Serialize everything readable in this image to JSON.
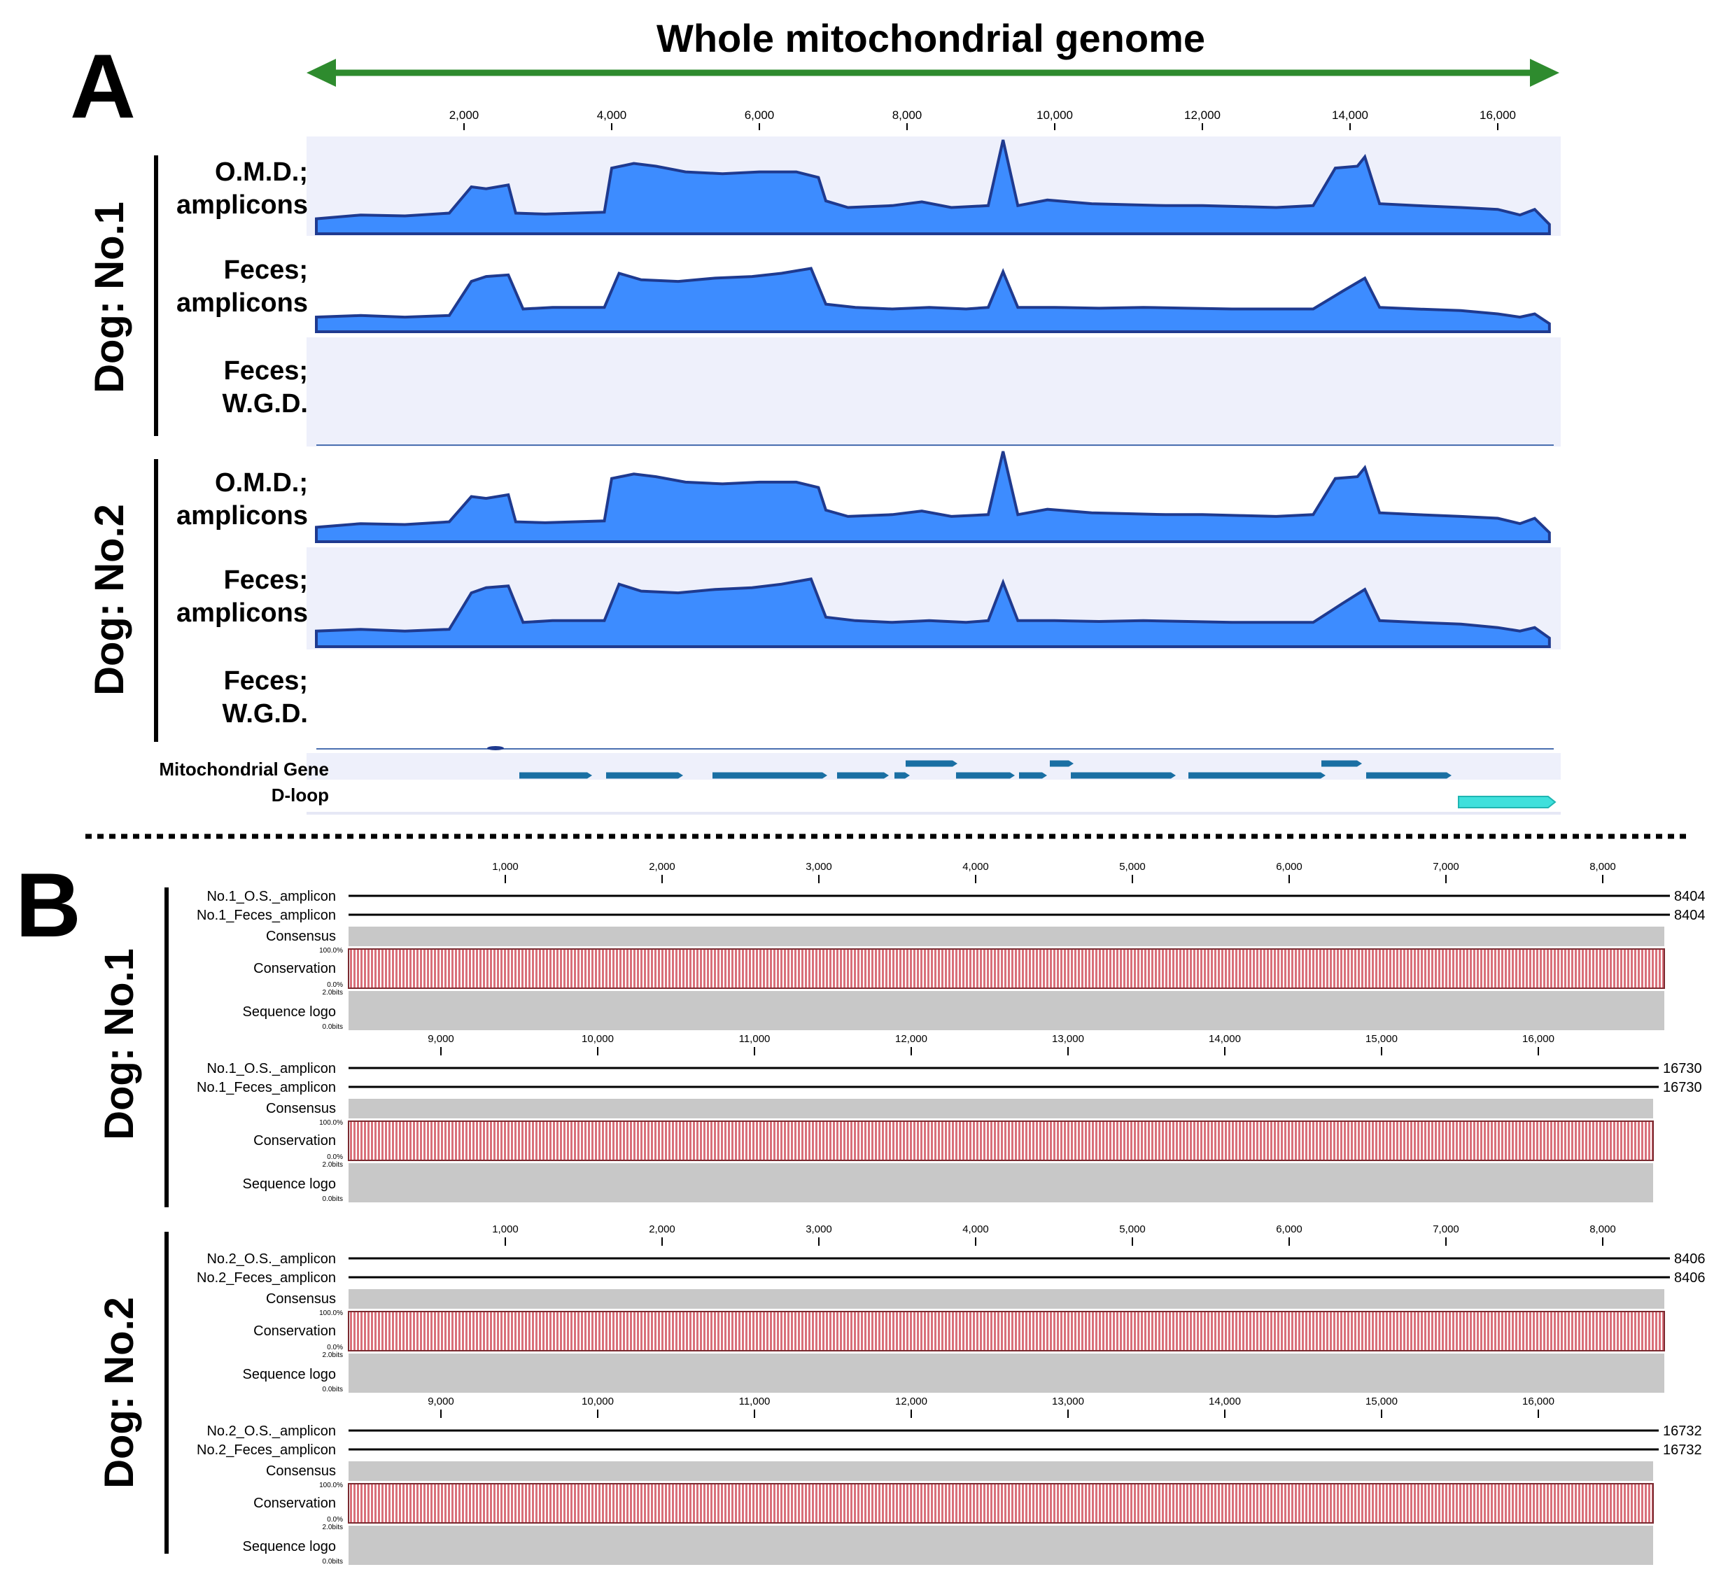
{
  "panel_a": {
    "letter": "A",
    "title": "Whole mitochondrial genome",
    "ruler_ticks": [
      "2,000",
      "4,000",
      "6,000",
      "8,000",
      "10,000",
      "12,000",
      "14,000",
      "16,000"
    ],
    "groups": [
      {
        "label": "Dog: No.1"
      },
      {
        "label": "Dog: No.2"
      }
    ],
    "tracks": [
      {
        "line1": "O.M.D.;",
        "line2": "amplicons"
      },
      {
        "line1": "Feces;",
        "line2": "amplicons"
      },
      {
        "line1": "Feces;",
        "line2": "W.G.D."
      },
      {
        "line1": "O.M.D.;",
        "line2": "amplicons"
      },
      {
        "line1": "Feces;",
        "line2": "amplicons"
      },
      {
        "line1": "Feces;",
        "line2": "W.G.D."
      }
    ],
    "annotation_tracks": {
      "gene": "Mitochondrial Gene",
      "dloop": "D-loop"
    },
    "colors": {
      "title_arrow": "#2e8b2e",
      "coverage_fill": "#3d8cff",
      "coverage_edge": "#1f3a8f",
      "track_bg": "#eef0fb",
      "gene": "#1a6fa3",
      "dloop": "#3fe0dc"
    }
  },
  "panel_b": {
    "letter": "B",
    "ticks_first": [
      "1,000",
      "2,000",
      "3,000",
      "4,000",
      "5,000",
      "6,000",
      "7,000",
      "8,000"
    ],
    "ticks_second": [
      "9,000",
      "10,000",
      "11,000",
      "12,000",
      "13,000",
      "14,000",
      "15,000",
      "16,000"
    ],
    "groups": [
      {
        "label": "Dog: No.1",
        "blocks": [
          {
            "seq1": "No.1_O.S._amplicon",
            "seq2": "No.1_Feces_amplicon",
            "end1": "8404",
            "end2": "8404"
          },
          {
            "seq1": "No.1_O.S._amplicon",
            "seq2": "No.1_Feces_amplicon",
            "end1": "16730",
            "end2": "16730"
          }
        ]
      },
      {
        "label": "Dog: No.2",
        "blocks": [
          {
            "seq1": "No.2_O.S._amplicon",
            "seq2": "No.2_Feces_amplicon",
            "end1": "8406",
            "end2": "8406"
          },
          {
            "seq1": "No.2_O.S._amplicon",
            "seq2": "No.2_Feces_amplicon",
            "end1": "16732",
            "end2": "16732"
          }
        ]
      }
    ],
    "row_labels": {
      "consensus": "Consensus",
      "conservation": "Conservation",
      "logo": "Sequence logo"
    },
    "small_labels": {
      "cons_top": "100.0%",
      "cons_bottom": "0.0%",
      "logo_top": "2.0bits",
      "logo_bottom": "0.0bits"
    },
    "colors": {
      "conservation": "#e07a80",
      "conservation_line": "#b03a44",
      "grey_row": "#c8c8c8"
    }
  }
}
